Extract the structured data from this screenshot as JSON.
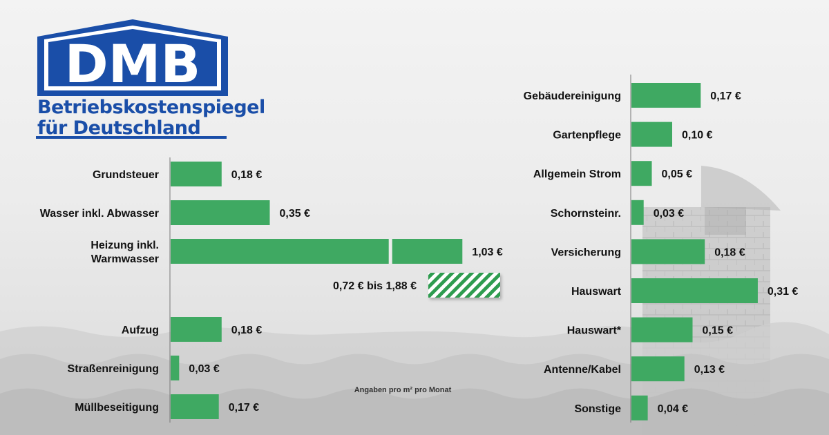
{
  "logo": {
    "brand": "DMB",
    "line1": "Betriebskostenspiegel",
    "line2": "für Deutschland"
  },
  "colors": {
    "bar": "#3fa962",
    "bar_dark": "#2f9653",
    "brand": "#1a4ea8"
  },
  "note": "Angaben pro m² pro Monat",
  "chart_data": [
    {
      "type": "bar",
      "orientation": "horizontal",
      "categories": [
        "Grundsteuer",
        "Wasser inkl. Abwasser",
        "Heizung inkl. Warmwasser",
        "Aufzug",
        "Straßenreinigung",
        "Müllbeseitigung"
      ],
      "category_lines": [
        [
          "Grundsteuer"
        ],
        [
          "Wasser inkl. Abwasser"
        ],
        [
          "Heizung inkl.",
          "Warmwasser"
        ],
        [
          "Aufzug"
        ],
        [
          "Straßenreinigung"
        ],
        [
          "Müllbeseitigung"
        ]
      ],
      "values": [
        0.18,
        0.35,
        1.03,
        0.18,
        0.03,
        0.17
      ],
      "value_labels": [
        "0,18 €",
        "0,35 €",
        "1,03 €",
        "0,18 €",
        "0,03 €",
        "0,17 €"
      ],
      "unit": "€",
      "range": {
        "label": "0,72 € bis 1,88 €",
        "of": "Heizung inkl. Warmwasser"
      },
      "xlim": [
        0,
        1.05
      ]
    },
    {
      "type": "bar",
      "orientation": "horizontal",
      "categories": [
        "Gebäudereinigung",
        "Gartenpflege",
        "Allgemein Strom",
        "Schornsteinr.",
        "Versicherung",
        "Hauswart",
        "Hauswart*",
        "Antenne/Kabel",
        "Sonstige"
      ],
      "values": [
        0.17,
        0.1,
        0.05,
        0.03,
        0.18,
        0.31,
        0.15,
        0.13,
        0.04
      ],
      "value_labels": [
        "0,17 €",
        "0,10 €",
        "0,05 €",
        "0,03 €",
        "0,18 €",
        "0,31 €",
        "0,15 €",
        "0,13 €",
        "0,04 €"
      ],
      "unit": "€",
      "xlim": [
        0,
        0.32
      ]
    }
  ]
}
